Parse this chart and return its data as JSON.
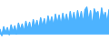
{
  "values": [
    5,
    -2,
    8,
    1,
    7,
    -1,
    10,
    2,
    9,
    0,
    12,
    4,
    11,
    2,
    14,
    5,
    13,
    3,
    16,
    7,
    15,
    5,
    18,
    8,
    17,
    6,
    20,
    10,
    19,
    8,
    22,
    11,
    21,
    9,
    23,
    12,
    22,
    10,
    25,
    13,
    24,
    11,
    26,
    14,
    25,
    12,
    27,
    30,
    14,
    26,
    8,
    28,
    22,
    25,
    10,
    29,
    18,
    24,
    12,
    27
  ],
  "line_color": "#4db3ff",
  "fill_color": "#4db3ff",
  "background_color": "#ffffff",
  "ylim_min": -8,
  "ylim_max": 38
}
